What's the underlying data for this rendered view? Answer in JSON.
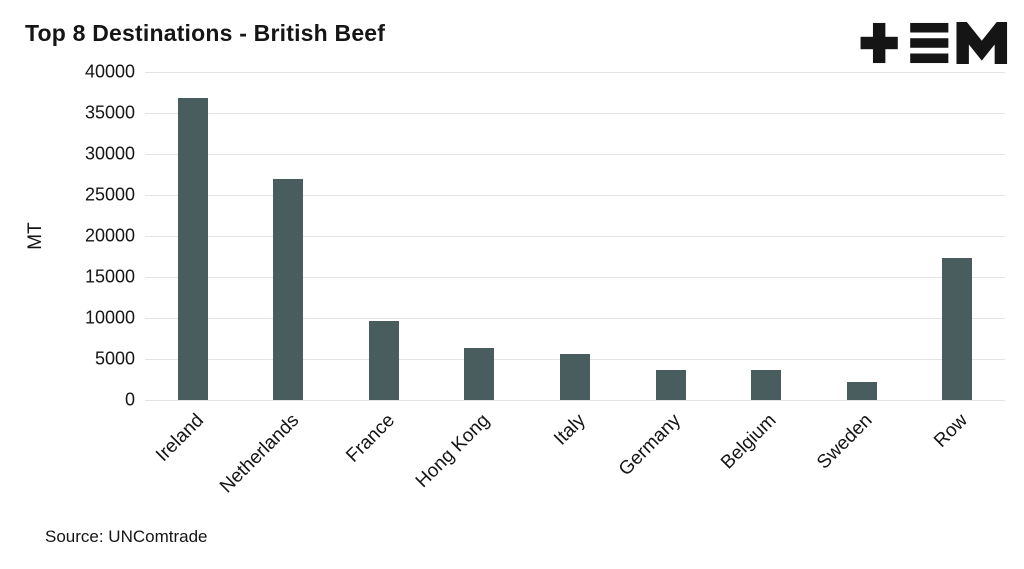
{
  "chart_data": {
    "type": "bar",
    "title": "Top 8 Destinations - British Beef",
    "ylabel": "MT",
    "xlabel": "",
    "source_label": "Source: UNComtrade",
    "categories": [
      "Ireland",
      "Netherlands",
      "France",
      "Hong Kong",
      "Italy",
      "Germany",
      "Belgium",
      "Sweden",
      "Row"
    ],
    "values": [
      36800,
      27000,
      9600,
      6400,
      5600,
      3700,
      3700,
      2200,
      17300
    ],
    "ylim": [
      0,
      40000
    ],
    "yticks": [
      0,
      5000,
      10000,
      15000,
      20000,
      25000,
      30000,
      35000,
      40000
    ],
    "grid": true,
    "legend": false,
    "bar_color": "#4a5d5e",
    "grid_color": "#e4e4e4",
    "text_color": "#151515",
    "background_color": "#ffffff"
  }
}
